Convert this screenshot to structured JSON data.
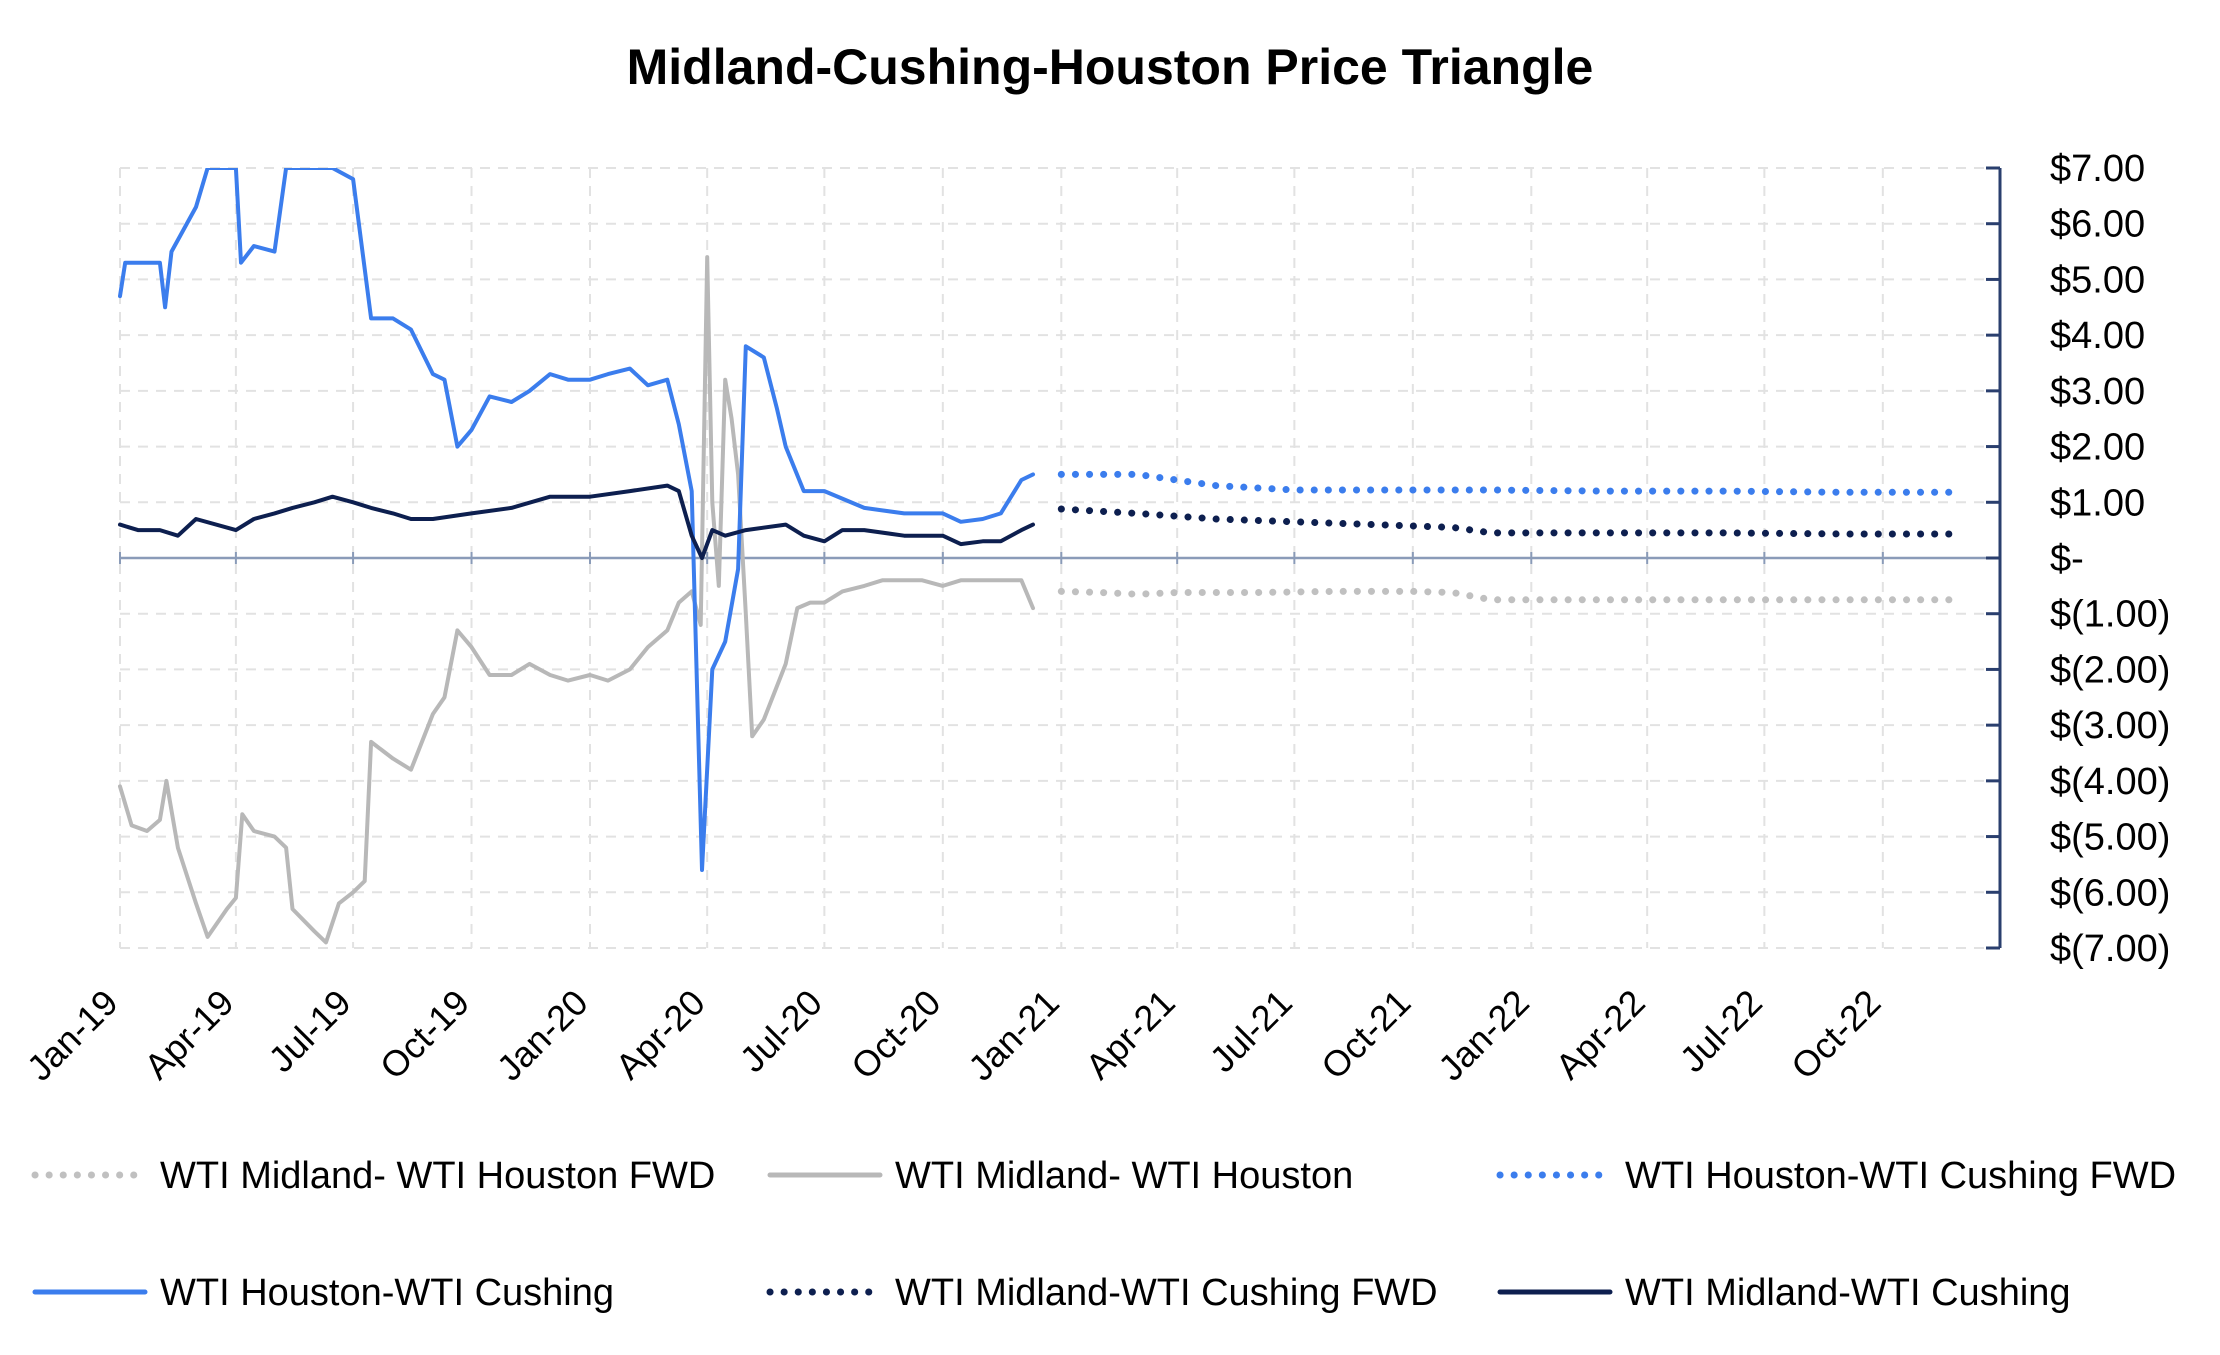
{
  "chart_data": {
    "type": "line",
    "title": "Midland-Cushing-Houston Price Triangle",
    "xlabel": "",
    "ylabel": "",
    "x_ticks": [
      "Jan-19",
      "Apr-19",
      "Jul-19",
      "Oct-19",
      "Jan-20",
      "Apr-20",
      "Jul-20",
      "Oct-20",
      "Jan-21",
      "Apr-21",
      "Jul-21",
      "Oct-21",
      "Jan-22",
      "Apr-22",
      "Jul-22",
      "Oct-22"
    ],
    "x_range": [
      "2019-01",
      "2022-12"
    ],
    "ylim": [
      -7,
      7
    ],
    "y_ticks": [
      {
        "value": 7,
        "label": "$7.00"
      },
      {
        "value": 6,
        "label": "$6.00"
      },
      {
        "value": 5,
        "label": "$5.00"
      },
      {
        "value": 4,
        "label": "$4.00"
      },
      {
        "value": 3,
        "label": "$3.00"
      },
      {
        "value": 2,
        "label": "$2.00"
      },
      {
        "value": 1,
        "label": "$1.00"
      },
      {
        "value": 0,
        "label": "$-"
      },
      {
        "value": -1,
        "label": "$(1.00)"
      },
      {
        "value": -2,
        "label": "$(2.00)"
      },
      {
        "value": -3,
        "label": "$(3.00)"
      },
      {
        "value": -4,
        "label": "$(4.00)"
      },
      {
        "value": -5,
        "label": "$(5.00)"
      },
      {
        "value": -6,
        "label": "$(6.00)"
      },
      {
        "value": -7,
        "label": "$(7.00)"
      }
    ],
    "y_axis_side": "right",
    "grid": true,
    "legend_position": "bottom",
    "series": [
      {
        "name": "WTI Midland- WTI Houston FWD",
        "color": "#c0c0c0",
        "style": "dotted",
        "points": [
          [
            "2021-01",
            -0.6
          ],
          [
            "2021-02",
            -0.62
          ],
          [
            "2021-03",
            -0.65
          ],
          [
            "2021-04",
            -0.62
          ],
          [
            "2021-06",
            -0.62
          ],
          [
            "2021-08",
            -0.6
          ],
          [
            "2021-10",
            -0.6
          ],
          [
            "2021-11",
            -0.62
          ],
          [
            "2021-12",
            -0.75
          ],
          [
            "2022-02",
            -0.75
          ],
          [
            "2022-06",
            -0.75
          ],
          [
            "2022-10",
            -0.75
          ],
          [
            "2022-12",
            -0.75
          ]
        ]
      },
      {
        "name": "WTI Midland- WTI Houston",
        "color": "#b8b8b8",
        "style": "solid",
        "points": [
          [
            "2019-01-01",
            -4.1
          ],
          [
            "2019-01-10",
            -4.8
          ],
          [
            "2019-01-22",
            -4.9
          ],
          [
            "2019-02-01",
            -4.7
          ],
          [
            "2019-02-06",
            -4.0
          ],
          [
            "2019-02-15",
            -5.2
          ],
          [
            "2019-03-01",
            -6.2
          ],
          [
            "2019-03-10",
            -6.8
          ],
          [
            "2019-03-25",
            -6.3
          ],
          [
            "2019-04-01",
            -6.1
          ],
          [
            "2019-04-06",
            -4.6
          ],
          [
            "2019-04-15",
            -4.9
          ],
          [
            "2019-05-01",
            -5.0
          ],
          [
            "2019-05-10",
            -5.2
          ],
          [
            "2019-05-15",
            -6.3
          ],
          [
            "2019-06-01",
            -6.7
          ],
          [
            "2019-06-10",
            -6.9
          ],
          [
            "2019-06-20",
            -6.2
          ],
          [
            "2019-07-01",
            -6.0
          ],
          [
            "2019-07-10",
            -5.8
          ],
          [
            "2019-07-15",
            -3.3
          ],
          [
            "2019-08-01",
            -3.6
          ],
          [
            "2019-08-15",
            -3.8
          ],
          [
            "2019-09-01",
            -2.8
          ],
          [
            "2019-09-10",
            -2.5
          ],
          [
            "2019-09-20",
            -1.3
          ],
          [
            "2019-10-01",
            -1.6
          ],
          [
            "2019-10-15",
            -2.1
          ],
          [
            "2019-11-01",
            -2.1
          ],
          [
            "2019-11-15",
            -1.9
          ],
          [
            "2019-12-01",
            -2.1
          ],
          [
            "2019-12-15",
            -2.2
          ],
          [
            "2020-01-01",
            -2.1
          ],
          [
            "2020-01-15",
            -2.2
          ],
          [
            "2020-02-01",
            -2.0
          ],
          [
            "2020-02-15",
            -1.6
          ],
          [
            "2020-03-01",
            -1.3
          ],
          [
            "2020-03-10",
            -0.8
          ],
          [
            "2020-03-20",
            -0.6
          ],
          [
            "2020-03-27",
            -1.2
          ],
          [
            "2020-04-01",
            5.4
          ],
          [
            "2020-04-05",
            1.0
          ],
          [
            "2020-04-10",
            -0.5
          ],
          [
            "2020-04-15",
            3.2
          ],
          [
            "2020-04-20",
            2.5
          ],
          [
            "2020-04-25",
            1.5
          ],
          [
            "2020-05-01",
            -1.0
          ],
          [
            "2020-05-06",
            -3.2
          ],
          [
            "2020-05-15",
            -2.9
          ],
          [
            "2020-06-01",
            -1.9
          ],
          [
            "2020-06-10",
            -0.9
          ],
          [
            "2020-06-20",
            -0.8
          ],
          [
            "2020-07-01",
            -0.8
          ],
          [
            "2020-07-15",
            -0.6
          ],
          [
            "2020-08-01",
            -0.5
          ],
          [
            "2020-08-15",
            -0.4
          ],
          [
            "2020-09-01",
            -0.4
          ],
          [
            "2020-09-15",
            -0.4
          ],
          [
            "2020-10-01",
            -0.5
          ],
          [
            "2020-10-15",
            -0.4
          ],
          [
            "2020-11-01",
            -0.4
          ],
          [
            "2020-11-15",
            -0.4
          ],
          [
            "2020-12-01",
            -0.4
          ],
          [
            "2020-12-10",
            -0.9
          ]
        ]
      },
      {
        "name": "WTI Houston-WTI Cushing FWD",
        "color": "#3b7ded",
        "style": "dotted",
        "points": [
          [
            "2021-01",
            1.5
          ],
          [
            "2021-03",
            1.5
          ],
          [
            "2021-05",
            1.3
          ],
          [
            "2021-07",
            1.22
          ],
          [
            "2021-09",
            1.22
          ],
          [
            "2021-12",
            1.22
          ],
          [
            "2022-03",
            1.2
          ],
          [
            "2022-06",
            1.2
          ],
          [
            "2022-09",
            1.18
          ],
          [
            "2022-12",
            1.18
          ]
        ]
      },
      {
        "name": "WTI Houston-WTI Cushing",
        "color": "#3b7ded",
        "style": "solid",
        "points": [
          [
            "2019-01-01",
            4.7
          ],
          [
            "2019-01-05",
            5.3
          ],
          [
            "2019-01-15",
            5.3
          ],
          [
            "2019-01-25",
            5.3
          ],
          [
            "2019-02-01",
            5.3
          ],
          [
            "2019-02-05",
            4.5
          ],
          [
            "2019-02-10",
            5.5
          ],
          [
            "2019-03-01",
            6.3
          ],
          [
            "2019-03-10",
            7.0
          ],
          [
            "2019-04-01",
            7.0
          ],
          [
            "2019-04-05",
            5.3
          ],
          [
            "2019-04-15",
            5.6
          ],
          [
            "2019-05-01",
            5.5
          ],
          [
            "2019-05-10",
            7.0
          ],
          [
            "2019-06-01",
            7.0
          ],
          [
            "2019-06-15",
            7.0
          ],
          [
            "2019-07-01",
            6.8
          ],
          [
            "2019-07-15",
            4.3
          ],
          [
            "2019-08-01",
            4.3
          ],
          [
            "2019-08-15",
            4.1
          ],
          [
            "2019-09-01",
            3.3
          ],
          [
            "2019-09-10",
            3.2
          ],
          [
            "2019-09-20",
            2.0
          ],
          [
            "2019-10-01",
            2.3
          ],
          [
            "2019-10-15",
            2.9
          ],
          [
            "2019-11-01",
            2.8
          ],
          [
            "2019-11-15",
            3.0
          ],
          [
            "2019-12-01",
            3.3
          ],
          [
            "2019-12-15",
            3.2
          ],
          [
            "2020-01-01",
            3.2
          ],
          [
            "2020-01-15",
            3.3
          ],
          [
            "2020-02-01",
            3.4
          ],
          [
            "2020-02-15",
            3.1
          ],
          [
            "2020-03-01",
            3.2
          ],
          [
            "2020-03-10",
            2.4
          ],
          [
            "2020-03-20",
            1.2
          ],
          [
            "2020-03-28",
            -5.6
          ],
          [
            "2020-04-05",
            -2.0
          ],
          [
            "2020-04-15",
            -1.5
          ],
          [
            "2020-04-25",
            -0.2
          ],
          [
            "2020-05-01",
            3.8
          ],
          [
            "2020-05-15",
            3.6
          ],
          [
            "2020-05-25",
            2.7
          ],
          [
            "2020-06-01",
            2.0
          ],
          [
            "2020-06-15",
            1.2
          ],
          [
            "2020-07-01",
            1.2
          ],
          [
            "2020-08-01",
            0.9
          ],
          [
            "2020-09-01",
            0.8
          ],
          [
            "2020-10-01",
            0.8
          ],
          [
            "2020-10-15",
            0.65
          ],
          [
            "2020-11-01",
            0.7
          ],
          [
            "2020-11-15",
            0.8
          ],
          [
            "2020-12-01",
            1.4
          ],
          [
            "2020-12-10",
            1.5
          ]
        ]
      },
      {
        "name": "WTI Midland-WTI Cushing FWD",
        "color": "#0d1f4f",
        "style": "dotted",
        "points": [
          [
            "2021-01",
            0.88
          ],
          [
            "2021-03",
            0.8
          ],
          [
            "2021-05",
            0.7
          ],
          [
            "2021-07",
            0.65
          ],
          [
            "2021-09",
            0.6
          ],
          [
            "2021-11",
            0.55
          ],
          [
            "2021-12",
            0.45
          ],
          [
            "2022-03",
            0.45
          ],
          [
            "2022-06",
            0.45
          ],
          [
            "2022-09",
            0.43
          ],
          [
            "2022-12",
            0.43
          ]
        ]
      },
      {
        "name": "WTI Midland-WTI Cushing",
        "color": "#0d1f4f",
        "style": "solid",
        "points": [
          [
            "2019-01-01",
            0.6
          ],
          [
            "2019-01-15",
            0.5
          ],
          [
            "2019-02-01",
            0.5
          ],
          [
            "2019-02-15",
            0.4
          ],
          [
            "2019-03-01",
            0.7
          ],
          [
            "2019-04-01",
            0.5
          ],
          [
            "2019-04-15",
            0.7
          ],
          [
            "2019-05-01",
            0.8
          ],
          [
            "2019-05-15",
            0.9
          ],
          [
            "2019-06-01",
            1.0
          ],
          [
            "2019-06-15",
            1.1
          ],
          [
            "2019-07-01",
            1.0
          ],
          [
            "2019-07-15",
            0.9
          ],
          [
            "2019-08-01",
            0.8
          ],
          [
            "2019-08-15",
            0.7
          ],
          [
            "2019-09-01",
            0.7
          ],
          [
            "2019-10-01",
            0.8
          ],
          [
            "2019-11-01",
            0.9
          ],
          [
            "2019-12-01",
            1.1
          ],
          [
            "2020-01-01",
            1.1
          ],
          [
            "2020-02-01",
            1.2
          ],
          [
            "2020-03-01",
            1.3
          ],
          [
            "2020-03-10",
            1.2
          ],
          [
            "2020-03-20",
            0.4
          ],
          [
            "2020-03-28",
            0.0
          ],
          [
            "2020-04-05",
            0.5
          ],
          [
            "2020-04-15",
            0.4
          ],
          [
            "2020-05-01",
            0.5
          ],
          [
            "2020-06-01",
            0.6
          ],
          [
            "2020-06-15",
            0.4
          ],
          [
            "2020-07-01",
            0.3
          ],
          [
            "2020-07-15",
            0.5
          ],
          [
            "2020-08-01",
            0.5
          ],
          [
            "2020-09-01",
            0.4
          ],
          [
            "2020-10-01",
            0.4
          ],
          [
            "2020-10-15",
            0.25
          ],
          [
            "2020-11-01",
            0.3
          ],
          [
            "2020-11-15",
            0.3
          ],
          [
            "2020-12-01",
            0.5
          ],
          [
            "2020-12-10",
            0.6
          ]
        ]
      }
    ]
  },
  "legend": {
    "items": [
      {
        "label": "WTI Midland- WTI Houston FWD",
        "color": "#c0c0c0",
        "style": "dotted"
      },
      {
        "label": "WTI Midland- WTI Houston",
        "color": "#b8b8b8",
        "style": "solid"
      },
      {
        "label": "WTI Houston-WTI Cushing FWD",
        "color": "#3b7ded",
        "style": "dotted"
      },
      {
        "label": "WTI Houston-WTI Cushing",
        "color": "#3b7ded",
        "style": "solid"
      },
      {
        "label": "WTI Midland-WTI Cushing FWD",
        "color": "#0d1f4f",
        "style": "dotted"
      },
      {
        "label": "WTI Midland-WTI Cushing",
        "color": "#0d1f4f",
        "style": "solid"
      }
    ]
  },
  "colors": {
    "axis": "#2a3f6e",
    "grid": "#e2e2e2",
    "zero_line": "#8a9bb8"
  }
}
